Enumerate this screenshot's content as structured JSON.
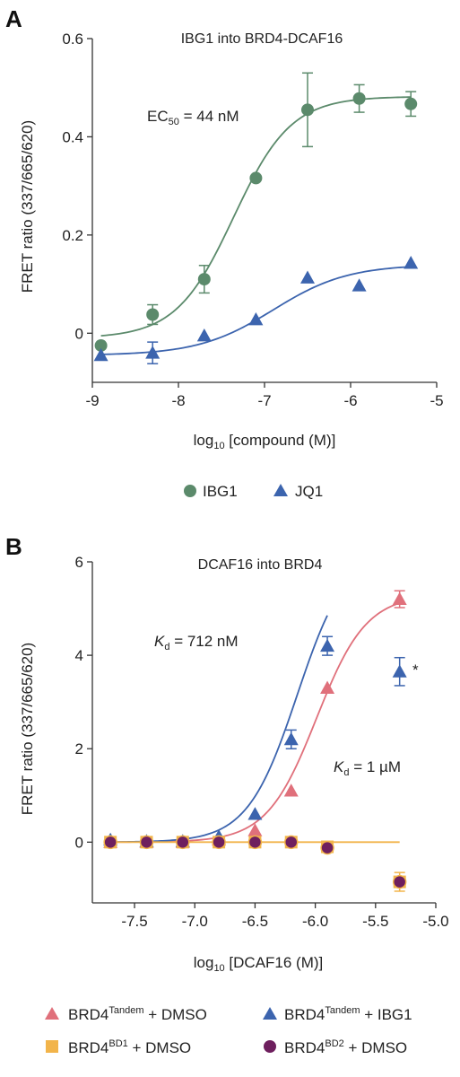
{
  "colors": {
    "ibg1_green": "#5b8a6b",
    "jq1_blue": "#3c64ae",
    "tandem_dmso_red": "#e0707b",
    "tandem_ibg1_blue": "#3c64ae",
    "bd1_orange": "#f2b44a",
    "bd2_purple": "#6e1f5e",
    "axis": "#333333"
  },
  "chart_data": [
    {
      "panel": "A",
      "type": "scatter",
      "title": "IBG1 into BRD4-DCAF16",
      "xlabel": "log10 [compound (M)]",
      "xlabel_main": "log",
      "xlabel_sub": "10",
      "xlabel_rest": " [compound (M)]",
      "ylabel": "FRET ratio (337/665/620)",
      "xlim": [
        -9,
        -5
      ],
      "ylim": [
        -0.1,
        0.6
      ],
      "xticks": [
        -9,
        -8,
        -7,
        -6,
        -5
      ],
      "xtick_labels": [
        "-9",
        "-8",
        "-7",
        "-6",
        "-5"
      ],
      "yticks": [
        0,
        0.2,
        0.4,
        0.6
      ],
      "ytick_labels": [
        "0",
        "0.2",
        "0.4",
        "0.6"
      ],
      "annotation": {
        "prefix": "EC",
        "sub": "50",
        "text": " = 44 nM"
      },
      "legend_position": "bottom",
      "series": [
        {
          "name": "IBG1",
          "marker": "circle",
          "color": "#5b8a6b",
          "points": [
            {
              "x": -8.9,
              "y": -0.025,
              "err": 0
            },
            {
              "x": -8.3,
              "y": 0.038,
              "err": 0.02
            },
            {
              "x": -7.7,
              "y": 0.11,
              "err": 0.028
            },
            {
              "x": -7.1,
              "y": 0.316,
              "err": 0
            },
            {
              "x": -6.5,
              "y": 0.455,
              "err": 0.075
            },
            {
              "x": -5.9,
              "y": 0.478,
              "err": 0.028
            },
            {
              "x": -5.3,
              "y": 0.467,
              "err": 0.025
            }
          ],
          "fit": {
            "bottom": -0.01,
            "top": 0.482,
            "logEC50": -7.36,
            "hill": 1.3
          }
        },
        {
          "name": "JQ1",
          "marker": "triangle",
          "color": "#3c64ae",
          "points": [
            {
              "x": -8.9,
              "y": -0.045,
              "err": 0
            },
            {
              "x": -8.3,
              "y": -0.04,
              "err": 0.022
            },
            {
              "x": -7.7,
              "y": -0.005,
              "err": 0
            },
            {
              "x": -7.1,
              "y": 0.028,
              "err": 0
            },
            {
              "x": -6.5,
              "y": 0.113,
              "err": 0
            },
            {
              "x": -5.9,
              "y": 0.097,
              "err": 0
            },
            {
              "x": -5.3,
              "y": 0.143,
              "err": 0
            }
          ],
          "fit": {
            "bottom": -0.045,
            "top": 0.14,
            "logEC50": -6.9,
            "hill": 1.0
          }
        }
      ]
    },
    {
      "panel": "B",
      "type": "scatter",
      "title": "DCAF16 into BRD4",
      "xlabel": "log10 [DCAF16 (M)]",
      "xlabel_main": "log",
      "xlabel_sub": "10",
      "xlabel_rest": " [DCAF16 (M)]",
      "ylabel": "FRET ratio (337/665/620)",
      "xlim": [
        -7.85,
        -5.0
      ],
      "ylim": [
        -1.3,
        6
      ],
      "xticks": [
        -7.5,
        -7.0,
        -6.5,
        -6.0,
        -5.5,
        -5.0
      ],
      "xtick_labels": [
        "-7.5",
        "-7.0",
        "-6.5",
        "-6.0",
        "-5.5",
        "-5.0"
      ],
      "yticks": [
        0,
        2,
        4,
        6
      ],
      "ytick_labels": [
        "0",
        "2",
        "4",
        "6"
      ],
      "annotations": [
        {
          "prefix": "K",
          "sub": "d",
          "text": " = 712 nM"
        },
        {
          "prefix": "K",
          "sub": "d",
          "text": " = 1 µM"
        },
        {
          "text": "*"
        }
      ],
      "legend_position": "bottom",
      "series": [
        {
          "name": "BRD4Tandem + DMSO",
          "name_main": "BRD4",
          "name_sup": "Tandem",
          "name_rest": " + DMSO",
          "marker": "triangle",
          "color": "#e0707b",
          "points": [
            {
              "x": -7.7,
              "y": 0.0,
              "err": 0
            },
            {
              "x": -7.4,
              "y": 0.0,
              "err": 0
            },
            {
              "x": -7.1,
              "y": 0.0,
              "err": 0
            },
            {
              "x": -6.8,
              "y": 0.05,
              "err": 0
            },
            {
              "x": -6.5,
              "y": 0.25,
              "err": 0
            },
            {
              "x": -6.2,
              "y": 1.1,
              "err": 0
            },
            {
              "x": -5.9,
              "y": 3.3,
              "err": 0
            },
            {
              "x": -5.3,
              "y": 5.2,
              "err": 0.18
            }
          ],
          "fit": {
            "bottom": 0.0,
            "top": 5.3,
            "logEC50": -5.99,
            "hill": 2.1
          }
        },
        {
          "name": "BRD4Tandem + IBG1",
          "name_main": "BRD4",
          "name_sup": "Tandem",
          "name_rest": " + IBG1",
          "marker": "triangle",
          "color": "#3c64ae",
          "points": [
            {
              "x": -7.7,
              "y": 0.05,
              "err": 0
            },
            {
              "x": -7.4,
              "y": 0.02,
              "err": 0
            },
            {
              "x": -7.1,
              "y": 0.02,
              "err": 0
            },
            {
              "x": -6.8,
              "y": 0.12,
              "err": 0
            },
            {
              "x": -6.5,
              "y": 0.6,
              "err": 0
            },
            {
              "x": -6.2,
              "y": 2.2,
              "err": 0.2
            },
            {
              "x": -5.9,
              "y": 4.2,
              "err": 0.2
            },
            {
              "x": -5.3,
              "y": 3.65,
              "err": 0.3
            }
          ],
          "fit": {
            "bottom": 0.0,
            "top": 6.3,
            "logEC50": -6.15,
            "hill": 2.1,
            "x_end": -5.9
          }
        },
        {
          "name": "BRD4BD1 + DMSO",
          "name_main": "BRD4",
          "name_sup": "BD1",
          "name_rest": " + DMSO",
          "marker": "square",
          "color": "#f2b44a",
          "points": [
            {
              "x": -7.7,
              "y": 0.0,
              "err": 0
            },
            {
              "x": -7.4,
              "y": 0.0,
              "err": 0
            },
            {
              "x": -7.1,
              "y": 0.0,
              "err": 0
            },
            {
              "x": -6.8,
              "y": 0.0,
              "err": 0
            },
            {
              "x": -6.5,
              "y": 0.0,
              "err": 0
            },
            {
              "x": -6.2,
              "y": 0.0,
              "err": 0
            },
            {
              "x": -5.9,
              "y": -0.1,
              "err": 0
            },
            {
              "x": -5.3,
              "y": -0.85,
              "err": 0.2
            }
          ],
          "fit": {
            "flat": 0.0
          }
        },
        {
          "name": "BRD4BD2 + DMSO",
          "name_main": "BRD4",
          "name_sup": "BD2",
          "name_rest": " + DMSO",
          "marker": "circle",
          "color": "#6e1f5e",
          "points": [
            {
              "x": -7.7,
              "y": 0.0,
              "err": 0
            },
            {
              "x": -7.4,
              "y": 0.0,
              "err": 0
            },
            {
              "x": -7.1,
              "y": 0.0,
              "err": 0
            },
            {
              "x": -6.8,
              "y": 0.0,
              "err": 0
            },
            {
              "x": -6.5,
              "y": 0.0,
              "err": 0
            },
            {
              "x": -6.2,
              "y": 0.0,
              "err": 0
            },
            {
              "x": -5.9,
              "y": -0.12,
              "err": 0
            },
            {
              "x": -5.3,
              "y": -0.85,
              "err": 0
            }
          ]
        }
      ]
    }
  ]
}
